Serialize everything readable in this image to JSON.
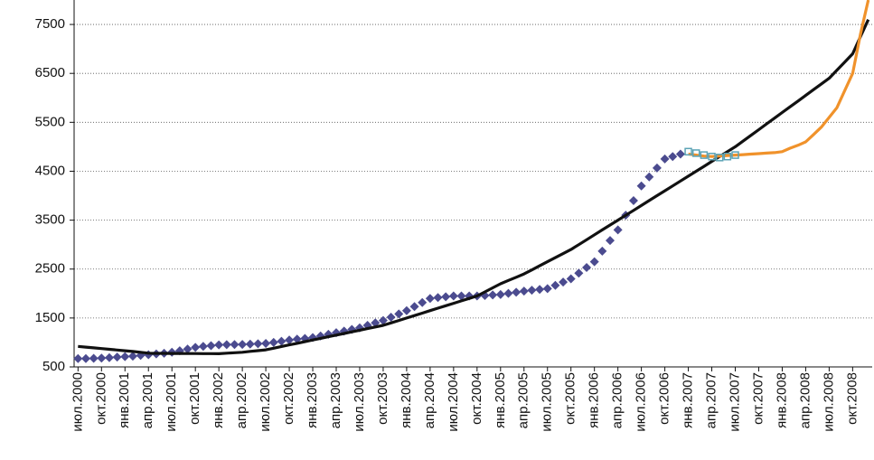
{
  "chart_data": {
    "type": "line",
    "categories": [
      "июл.2000",
      null,
      null,
      "окт.2000",
      null,
      null,
      "янв.2001",
      null,
      null,
      "апр.2001",
      null,
      null,
      "июл.2001",
      null,
      null,
      "окт.2001",
      null,
      null,
      "янв.2002",
      null,
      null,
      "апр.2002",
      null,
      null,
      "июл.2002",
      null,
      null,
      "окт.2002",
      null,
      null,
      "янв.2003",
      null,
      null,
      "апр.2003",
      null,
      null,
      "июл.2003",
      null,
      null,
      "окт.2003",
      null,
      null,
      "янв.2004",
      null,
      null,
      "апр.2004",
      null,
      null,
      "июл.2004",
      null,
      null,
      "окт.2004",
      null,
      null,
      "янв.2005",
      null,
      null,
      "апр.2005",
      null,
      null,
      "июл.2005",
      null,
      null,
      "окт.2005",
      null,
      null,
      "янв.2006",
      null,
      null,
      "апр.2006",
      null,
      null,
      "июл.2006",
      null,
      null,
      "окт.2006",
      null,
      null,
      "янв.2007",
      null,
      null,
      "апр.2007",
      null,
      null,
      "июл.2007",
      null,
      null,
      "окт.2007",
      null,
      null,
      "янв.2008",
      null,
      null,
      "апр.2008",
      null,
      null,
      "июл.2008",
      null,
      null,
      "окт.2008",
      null,
      null
    ],
    "series": [
      {
        "color": "#4b4b8f",
        "marker": "diamond",
        "line": false,
        "values": [
          670,
          670,
          675,
          680,
          690,
          700,
          710,
          720,
          735,
          750,
          765,
          780,
          800,
          830,
          865,
          900,
          920,
          935,
          950,
          955,
          958,
          960,
          967,
          973,
          980,
          1000,
          1025,
          1050,
          1067,
          1083,
          1100,
          1133,
          1167,
          1200,
          1233,
          1267,
          1300,
          1350,
          1400,
          1450,
          1517,
          1583,
          1650,
          1733,
          1817,
          1900,
          1917,
          1933,
          1950,
          1950,
          1950,
          1950,
          1960,
          1970,
          1980,
          2003,
          2027,
          2050,
          2067,
          2083,
          2100,
          2167,
          2233,
          2300,
          2417,
          2533,
          2650,
          2867,
          3083,
          3300,
          3600,
          3900,
          4200,
          4383,
          4567,
          4750,
          4800,
          4850,
          null,
          null,
          null,
          null,
          null,
          null,
          null,
          null,
          null,
          null,
          null,
          null,
          null,
          null,
          null,
          null,
          null,
          null,
          null,
          null,
          null,
          null,
          null,
          null
        ]
      },
      {
        "color": "#111111",
        "marker": "none",
        "line": true,
        "values": [
          920,
          905,
          890,
          875,
          860,
          845,
          830,
          815,
          800,
          780,
          778,
          777,
          776,
          775,
          774,
          773,
          772,
          771,
          770,
          780,
          790,
          800,
          817,
          833,
          850,
          883,
          917,
          950,
          983,
          1017,
          1050,
          1083,
          1117,
          1150,
          1183,
          1217,
          1250,
          1283,
          1317,
          1350,
          1400,
          1450,
          1500,
          1550,
          1600,
          1650,
          1700,
          1750,
          1800,
          1850,
          1900,
          1950,
          2033,
          2117,
          2200,
          2267,
          2333,
          2400,
          2483,
          2567,
          2650,
          2733,
          2817,
          2900,
          3000,
          3100,
          3200,
          3300,
          3400,
          3500,
          3600,
          3700,
          3800,
          3900,
          4000,
          4100,
          4200,
          4300,
          4400,
          4500,
          4600,
          4700,
          4800,
          4900,
          5000,
          5117,
          5233,
          5350,
          5467,
          5583,
          5700,
          5817,
          5933,
          6050,
          6167,
          6283,
          6400,
          6567,
          6733,
          6900,
          7250,
          7600
        ]
      },
      {
        "color": "#f0922b",
        "marker": "none",
        "line": true,
        "values": [
          null,
          null,
          null,
          null,
          null,
          null,
          null,
          null,
          null,
          null,
          null,
          null,
          null,
          null,
          null,
          null,
          null,
          null,
          null,
          null,
          null,
          null,
          null,
          null,
          null,
          null,
          null,
          null,
          null,
          null,
          null,
          null,
          null,
          null,
          null,
          null,
          null,
          null,
          null,
          null,
          null,
          null,
          null,
          null,
          null,
          null,
          null,
          null,
          null,
          null,
          null,
          null,
          null,
          null,
          null,
          null,
          null,
          null,
          null,
          null,
          null,
          null,
          null,
          null,
          null,
          null,
          null,
          null,
          null,
          null,
          null,
          null,
          null,
          null,
          null,
          null,
          null,
          null,
          4850,
          4830,
          4810,
          4800,
          4810,
          4820,
          4830,
          4840,
          4850,
          4860,
          4870,
          4880,
          4900,
          4970,
          5030,
          5100,
          5250,
          5400,
          5600,
          5800,
          6150,
          6500,
          7300,
          8000
        ]
      },
      {
        "color": "#5ba3b5",
        "marker": "square",
        "line": false,
        "values": [
          null,
          null,
          null,
          null,
          null,
          null,
          null,
          null,
          null,
          null,
          null,
          null,
          null,
          null,
          null,
          null,
          null,
          null,
          null,
          null,
          null,
          null,
          null,
          null,
          null,
          null,
          null,
          null,
          null,
          null,
          null,
          null,
          null,
          null,
          null,
          null,
          null,
          null,
          null,
          null,
          null,
          null,
          null,
          null,
          null,
          null,
          null,
          null,
          null,
          null,
          null,
          null,
          null,
          null,
          null,
          null,
          null,
          null,
          null,
          null,
          null,
          null,
          null,
          null,
          null,
          null,
          null,
          null,
          null,
          null,
          null,
          null,
          null,
          null,
          null,
          null,
          null,
          null,
          4900,
          4870,
          4830,
          4800,
          4780,
          4800,
          4830,
          null,
          null,
          null,
          null,
          null,
          null,
          null,
          null,
          null,
          null,
          null,
          null,
          null,
          null,
          null,
          null,
          null
        ]
      }
    ],
    "ylim": [
      500,
      8000
    ],
    "yticks": [
      500,
      1500,
      2500,
      3500,
      4500,
      5500,
      6500,
      7500
    ],
    "grid": true
  }
}
